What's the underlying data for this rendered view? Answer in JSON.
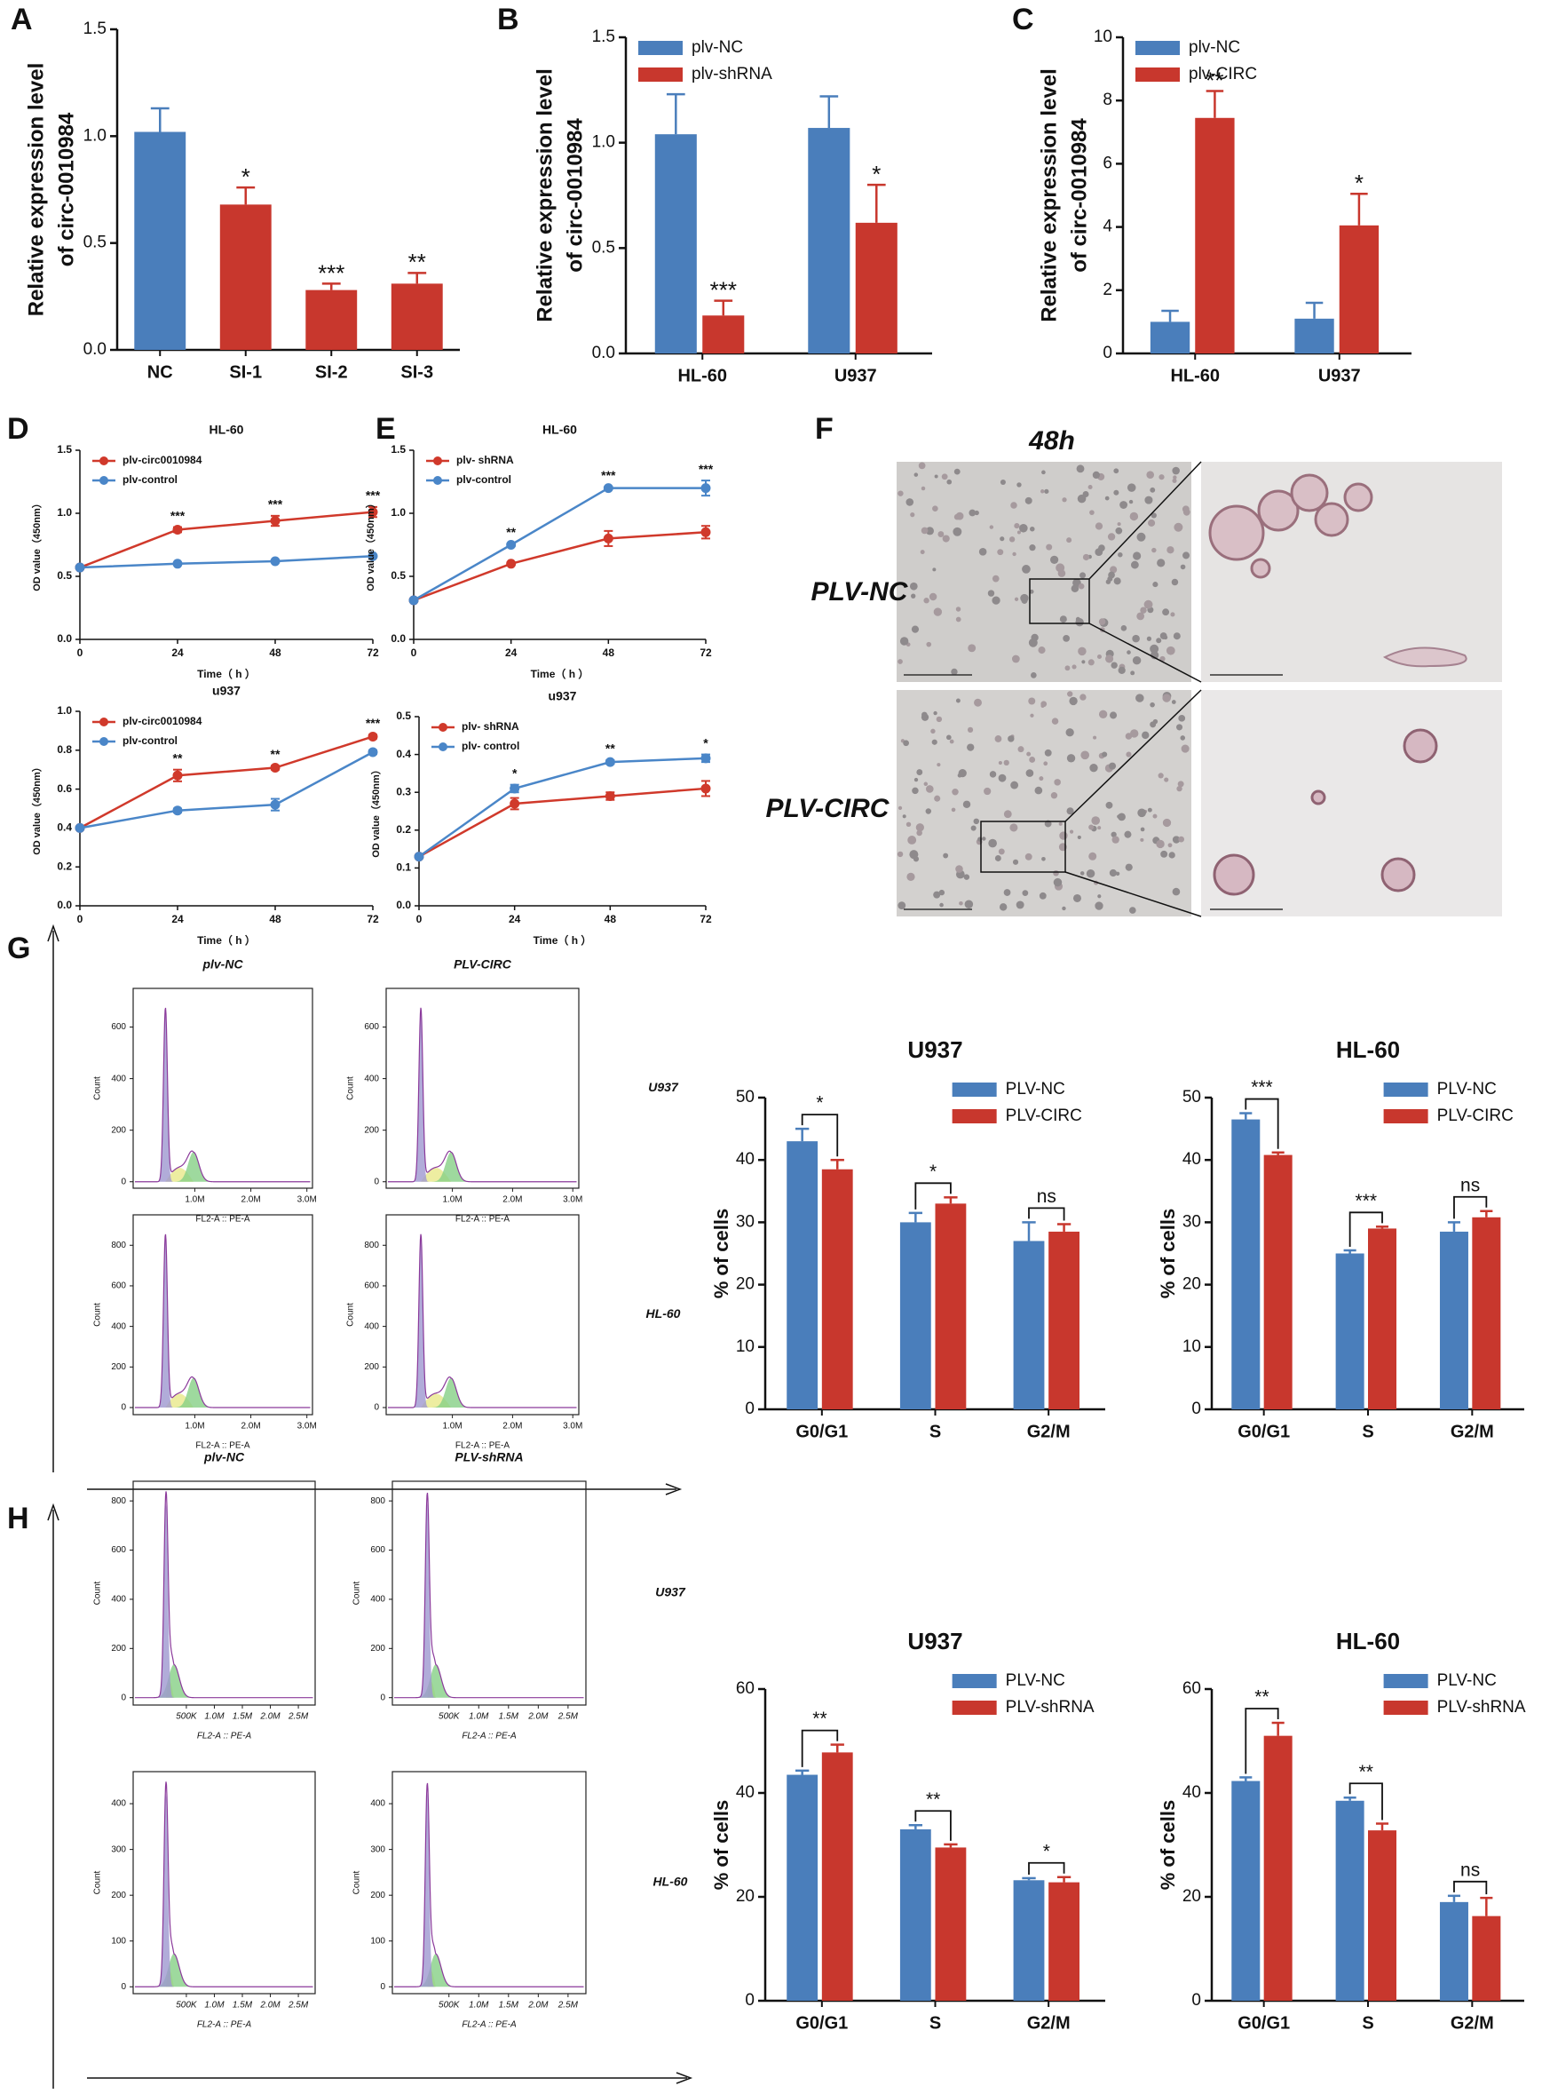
{
  "panel_labels": [
    "A",
    "B",
    "C",
    "D",
    "E",
    "F",
    "G",
    "H"
  ],
  "panel_f": {
    "title": "48h",
    "rows": [
      "PLV-NC",
      "PLV-CIRC"
    ]
  },
  "chart_data": [
    {
      "type": "bar",
      "categories": [
        "NC",
        "SI-1",
        "SI-2",
        "SI-3"
      ],
      "values": [
        1.02,
        0.68,
        0.28,
        0.31
      ],
      "errors": [
        0.11,
        0.08,
        0.03,
        0.05
      ],
      "colors": [
        "#4a7ebb",
        "#c8372d",
        "#c8372d",
        "#c8372d"
      ],
      "annotations": [
        null,
        "*",
        "***",
        "**"
      ],
      "ylim": [
        0,
        1.5
      ],
      "yticks": [
        {
          "value": 0,
          "label": "0.0"
        },
        {
          "value": 0.5,
          "label": "0.5"
        },
        {
          "value": 1,
          "label": "1.0"
        },
        {
          "value": 1.5,
          "label": "1.5"
        }
      ],
      "ylabel": [
        "Relative expression level",
        "of circ-0010984"
      ]
    },
    {
      "type": "grouped_bar",
      "categories": [
        "HL-60",
        "U937"
      ],
      "series": [
        {
          "name": "plv-NC",
          "color": "#4a7ebb",
          "values": [
            1.04,
            1.07
          ],
          "errors": [
            0.19,
            0.15
          ]
        },
        {
          "name": "plv-shRNA",
          "color": "#c8372d",
          "values": [
            0.18,
            0.62
          ],
          "errors": [
            0.07,
            0.18
          ],
          "annotations": [
            "***",
            "*"
          ]
        }
      ],
      "legend": "upper left",
      "ylim": [
        0,
        1.5
      ],
      "yticks": [
        {
          "value": 0,
          "label": "0.0"
        },
        {
          "value": 0.5,
          "label": "0.5"
        },
        {
          "value": 1,
          "label": "1.0"
        },
        {
          "value": 1.5,
          "label": "1.5"
        }
      ],
      "ylabel": [
        "Relative expression level",
        "of circ-0010984"
      ]
    },
    {
      "type": "grouped_bar",
      "categories": [
        "HL-60",
        "U937"
      ],
      "series": [
        {
          "name": "plv-NC",
          "color": "#4a7ebb",
          "values": [
            1.0,
            1.1
          ],
          "errors": [
            0.35,
            0.5
          ]
        },
        {
          "name": "plv-CIRC",
          "color": "#c8372d",
          "values": [
            7.45,
            4.05
          ],
          "errors": [
            0.85,
            1.0
          ],
          "annotations": [
            "**",
            "*"
          ]
        }
      ],
      "legend": "upper left",
      "ylim": [
        0,
        10
      ],
      "yticks": [
        0,
        2,
        4,
        6,
        8,
        10
      ],
      "ylabel": [
        "Relative expression level",
        "of circ-0010984"
      ]
    },
    {
      "type": "line",
      "title": "HL-60",
      "x": [
        0,
        24,
        48,
        72
      ],
      "xlim": [
        0,
        72
      ],
      "xticks": [
        0,
        24,
        48,
        72
      ],
      "ylim": [
        0,
        1.5
      ],
      "yticks": [
        {
          "value": 0,
          "label": "0.0"
        },
        {
          "value": 0.5,
          "label": "0.5"
        },
        {
          "value": 1,
          "label": "1.0"
        },
        {
          "value": 1.5,
          "label": "1.5"
        }
      ],
      "series": [
        {
          "name": "plv-circ0010984",
          "color": "#d0392b",
          "values": [
            0.57,
            0.87,
            0.94,
            1.01
          ],
          "errors": [
            0,
            0.02,
            0.04,
            0.04
          ]
        },
        {
          "name": "plv-control",
          "color": "#4a86c8",
          "values": [
            0.57,
            0.6,
            0.62,
            0.66
          ],
          "errors": [
            0,
            0,
            0,
            0.01
          ]
        }
      ],
      "annotations": [
        null,
        "***",
        "***",
        "***"
      ],
      "xlabel": "Time（ h ）",
      "ylabel": "OD value（450nm）",
      "legend": "upper left"
    },
    {
      "type": "line",
      "title": "u937",
      "x": [
        0,
        24,
        48,
        72
      ],
      "xlim": [
        0,
        72
      ],
      "xticks": [
        0,
        24,
        48,
        72
      ],
      "ylim": [
        0,
        1.0
      ],
      "yticks": [
        {
          "value": 0,
          "label": "0.0"
        },
        {
          "value": 0.2,
          "label": "0.2"
        },
        {
          "value": 0.4,
          "label": "0.4"
        },
        {
          "value": 0.6,
          "label": "0.6"
        },
        {
          "value": 0.8,
          "label": "0.8"
        },
        {
          "value": 1.0,
          "label": "1.0"
        }
      ],
      "series": [
        {
          "name": "plv-circ0010984",
          "color": "#d0392b",
          "values": [
            0.4,
            0.67,
            0.71,
            0.87
          ],
          "errors": [
            0,
            0.03,
            0.01,
            0.01
          ]
        },
        {
          "name": "plv-control",
          "color": "#4a86c8",
          "values": [
            0.4,
            0.49,
            0.52,
            0.79
          ],
          "errors": [
            0,
            0.01,
            0.03,
            0.01
          ]
        }
      ],
      "annotations": [
        null,
        "**",
        "**",
        "***"
      ],
      "xlabel": "Time（ h ）",
      "ylabel": "OD value（450nm）",
      "legend": "upper left"
    },
    {
      "type": "line",
      "title": "HL-60",
      "x": [
        0,
        24,
        48,
        72
      ],
      "xlim": [
        0,
        72
      ],
      "xticks": [
        0,
        24,
        48,
        72
      ],
      "ylim": [
        0,
        1.5
      ],
      "yticks": [
        {
          "value": 0,
          "label": "0.0"
        },
        {
          "value": 0.5,
          "label": "0.5"
        },
        {
          "value": 1,
          "label": "1.0"
        },
        {
          "value": 1.5,
          "label": "1.5"
        }
      ],
      "series": [
        {
          "name": "plv- shRNA",
          "color": "#d0392b",
          "values": [
            0.31,
            0.6,
            0.8,
            0.85
          ],
          "errors": [
            0,
            0.01,
            0.06,
            0.05
          ]
        },
        {
          "name": "plv-control",
          "color": "#4a86c8",
          "values": [
            0.31,
            0.75,
            1.2,
            1.2
          ],
          "errors": [
            0,
            0.01,
            0.01,
            0.06
          ]
        }
      ],
      "annotations": [
        null,
        "**",
        "***",
        "***"
      ],
      "xlabel": "Time（ h ）",
      "ylabel": "OD value（450nm）",
      "legend": "upper left"
    },
    {
      "type": "line",
      "title": "u937",
      "x": [
        0,
        24,
        48,
        72
      ],
      "xlim": [
        0,
        72
      ],
      "xticks": [
        0,
        24,
        48,
        72
      ],
      "ylim": [
        0,
        0.5
      ],
      "yticks": [
        {
          "value": 0,
          "label": "0.0"
        },
        {
          "value": 0.1,
          "label": "0.1"
        },
        {
          "value": 0.2,
          "label": "0.2"
        },
        {
          "value": 0.3,
          "label": "0.3"
        },
        {
          "value": 0.4,
          "label": "0.4"
        },
        {
          "value": 0.5,
          "label": "0.5"
        }
      ],
      "series": [
        {
          "name": "plv- shRNA",
          "color": "#d0392b",
          "values": [
            0.13,
            0.27,
            0.29,
            0.31
          ],
          "errors": [
            0,
            0.015,
            0.01,
            0.02
          ]
        },
        {
          "name": "plv- control",
          "color": "#4a86c8",
          "values": [
            0.13,
            0.31,
            0.38,
            0.39
          ],
          "errors": [
            0,
            0.01,
            0.005,
            0.01
          ]
        }
      ],
      "annotations": [
        null,
        "*",
        "**",
        "*"
      ],
      "xlabel": "Time（ h ）",
      "ylabel": "OD value（450nm）",
      "legend": "upper left"
    },
    {
      "type": "flow",
      "title": "plv-NC",
      "xlabel": "FL2-A :: PE-A",
      "ylabel": "Count",
      "xlim": [
        -100000,
        3100000
      ],
      "xticks": [
        {
          "value": 1000000,
          "label": "1.0M"
        },
        {
          "value": 2000000,
          "label": "2.0M"
        },
        {
          "value": 3000000,
          "label": "3.0M"
        }
      ],
      "ylim": [
        -25,
        750
      ],
      "yticks": [
        0,
        200,
        400,
        600
      ]
    },
    {
      "type": "flow",
      "title": "PLV-CIRC",
      "row_label": "U937",
      "xlabel": "FL2-A :: PE-A",
      "ylabel": "Count",
      "xlim": [
        -100000,
        3100000
      ],
      "xticks": [
        {
          "value": 1000000,
          "label": "1.0M"
        },
        {
          "value": 2000000,
          "label": "2.0M"
        },
        {
          "value": 3000000,
          "label": "3.0M"
        }
      ],
      "ylim": [
        -25,
        750
      ],
      "yticks": [
        0,
        200,
        400,
        600
      ]
    },
    {
      "type": "flow",
      "xlabel": "FL2-A :: PE-A",
      "ylabel": "Count",
      "xlim": [
        -100000,
        3100000
      ],
      "xticks": [
        {
          "value": 1000000,
          "label": "1.0M"
        },
        {
          "value": 2000000,
          "label": "2.0M"
        },
        {
          "value": 3000000,
          "label": "3.0M"
        }
      ],
      "ylim": [
        -35,
        950
      ],
      "yticks": [
        0,
        200,
        400,
        600,
        800
      ]
    },
    {
      "type": "flow",
      "row_label": "HL-60",
      "xlabel": "FL2-A :: PE-A",
      "ylabel": "Count",
      "xlim": [
        -100000,
        3100000
      ],
      "xticks": [
        {
          "value": 1000000,
          "label": "1.0M"
        },
        {
          "value": 2000000,
          "label": "2.0M"
        },
        {
          "value": 3000000,
          "label": "3.0M"
        }
      ],
      "ylim": [
        -35,
        950
      ],
      "yticks": [
        0,
        200,
        400,
        600,
        800
      ]
    },
    {
      "type": "grouped_bar",
      "title": "U937",
      "categories": [
        "G0/G1",
        "S",
        "G2/M"
      ],
      "series": [
        {
          "name": "PLV-NC",
          "color": "#4a7ebb",
          "values": [
            43,
            30,
            27
          ],
          "errors": [
            2,
            1.5,
            3
          ]
        },
        {
          "name": "PLV-CIRC",
          "color": "#c8372d",
          "values": [
            38.5,
            33,
            28.5
          ],
          "errors": [
            1.5,
            1,
            1.2
          ]
        }
      ],
      "brackets": [
        "*",
        "*",
        "ns"
      ],
      "legend": "upper right",
      "ylim": [
        0,
        50
      ],
      "yticks": [
        0,
        10,
        20,
        30,
        40,
        50
      ],
      "ylabel": [
        "% of cells"
      ]
    },
    {
      "type": "grouped_bar",
      "title": "HL-60",
      "categories": [
        "G0/G1",
        "S",
        "G2/M"
      ],
      "series": [
        {
          "name": "PLV-NC",
          "color": "#4a7ebb",
          "values": [
            46.5,
            25,
            28.5
          ],
          "errors": [
            1,
            0.5,
            1.5
          ]
        },
        {
          "name": "PLV-CIRC",
          "color": "#c8372d",
          "values": [
            40.8,
            29,
            30.8
          ],
          "errors": [
            0.4,
            0.3,
            1
          ]
        }
      ],
      "brackets": [
        "***",
        "***",
        "ns"
      ],
      "legend": "upper right",
      "ylim": [
        0,
        50
      ],
      "yticks": [
        0,
        10,
        20,
        30,
        40,
        50
      ],
      "ylabel": [
        "% of cells"
      ]
    },
    {
      "type": "flow",
      "title": "plv-NC",
      "xlabel": "FL2-A :: PE-A",
      "ylabel": "Count",
      "xlim": [
        -450000,
        2800000
      ],
      "xticks": [
        {
          "value": 500000,
          "label": "500K"
        },
        {
          "value": 1000000,
          "label": "1.0M"
        },
        {
          "value": 1500000,
          "label": "1.5M"
        },
        {
          "value": 2000000,
          "label": "2.0M"
        },
        {
          "value": 2500000,
          "label": "2.5M"
        }
      ],
      "ylim": [
        -30,
        880
      ],
      "yticks": [
        0,
        200,
        400,
        600,
        800
      ]
    },
    {
      "type": "flow",
      "title": "PLV-shRNA",
      "row_label": "U937",
      "xlabel": "FL2-A :: PE-A",
      "ylabel": "Count",
      "xlim": [
        -450000,
        2800000
      ],
      "xticks": [
        {
          "value": 500000,
          "label": "500K"
        },
        {
          "value": 1000000,
          "label": "1.0M"
        },
        {
          "value": 1500000,
          "label": "1.5M"
        },
        {
          "value": 2000000,
          "label": "2.0M"
        },
        {
          "value": 2500000,
          "label": "2.5M"
        }
      ],
      "ylim": [
        -30,
        880
      ],
      "yticks": [
        0,
        200,
        400,
        600,
        800
      ]
    },
    {
      "type": "flow",
      "xlabel": "FL2-A :: PE-A",
      "ylabel": "Count",
      "xlim": [
        -450000,
        2800000
      ],
      "xticks": [
        {
          "value": 500000,
          "label": "500K"
        },
        {
          "value": 1000000,
          "label": "1.0M"
        },
        {
          "value": 1500000,
          "label": "1.5M"
        },
        {
          "value": 2000000,
          "label": "2.0M"
        },
        {
          "value": 2500000,
          "label": "2.5M"
        }
      ],
      "ylim": [
        -15,
        470
      ],
      "yticks": [
        0,
        100,
        200,
        300,
        400
      ]
    },
    {
      "type": "flow",
      "row_label": "HL-60",
      "xlabel": "FL2-A :: PE-A",
      "ylabel": "Count",
      "xlim": [
        -450000,
        2800000
      ],
      "xticks": [
        {
          "value": 500000,
          "label": "500K"
        },
        {
          "value": 1000000,
          "label": "1.0M"
        },
        {
          "value": 1500000,
          "label": "1.5M"
        },
        {
          "value": 2000000,
          "label": "2.0M"
        },
        {
          "value": 2500000,
          "label": "2.5M"
        }
      ],
      "ylim": [
        -15,
        470
      ],
      "yticks": [
        0,
        100,
        200,
        300,
        400
      ]
    },
    {
      "type": "grouped_bar",
      "title": "U937",
      "categories": [
        "G0/G1",
        "S",
        "G2/M"
      ],
      "series": [
        {
          "name": "PLV-NC",
          "color": "#4a7ebb",
          "values": [
            43.5,
            33,
            23.2
          ],
          "errors": [
            0.8,
            0.8,
            0.4
          ]
        },
        {
          "name": "PLV-shRNA",
          "color": "#c8372d",
          "values": [
            47.8,
            29.5,
            22.8
          ],
          "errors": [
            1.5,
            0.6,
            1
          ]
        }
      ],
      "brackets": [
        "**",
        "**",
        "*"
      ],
      "legend": "upper right",
      "ylim": [
        0,
        60
      ],
      "yticks": [
        0,
        20,
        40,
        60
      ],
      "ylabel": [
        "% of cells"
      ]
    },
    {
      "type": "grouped_bar",
      "title": "HL-60",
      "categories": [
        "G0/G1",
        "S",
        "G2/M"
      ],
      "series": [
        {
          "name": "PLV-NC",
          "color": "#4a7ebb",
          "values": [
            42.3,
            38.5,
            19
          ],
          "errors": [
            0.7,
            0.6,
            1.2
          ]
        },
        {
          "name": "PLV-shRNA",
          "color": "#c8372d",
          "values": [
            51,
            32.8,
            16.3
          ],
          "errors": [
            2.5,
            1.3,
            3.5
          ]
        }
      ],
      "brackets": [
        "**",
        "**",
        "ns"
      ],
      "legend": "upper right",
      "ylim": [
        0,
        60
      ],
      "yticks": [
        0,
        20,
        40,
        60
      ],
      "ylabel": [
        "% of cells"
      ]
    }
  ]
}
